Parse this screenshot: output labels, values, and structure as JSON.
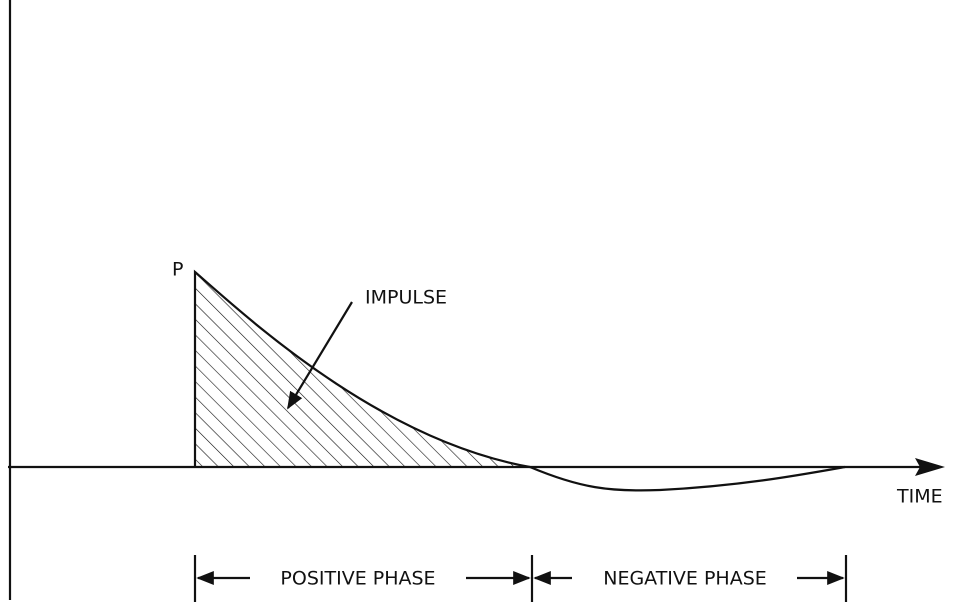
{
  "labels": {
    "peak": "P",
    "impulse": "IMPULSE",
    "time": "TIME",
    "positive_phase": "POSITIVE PHASE",
    "negative_phase": "NEGATIVE PHASE"
  }
}
